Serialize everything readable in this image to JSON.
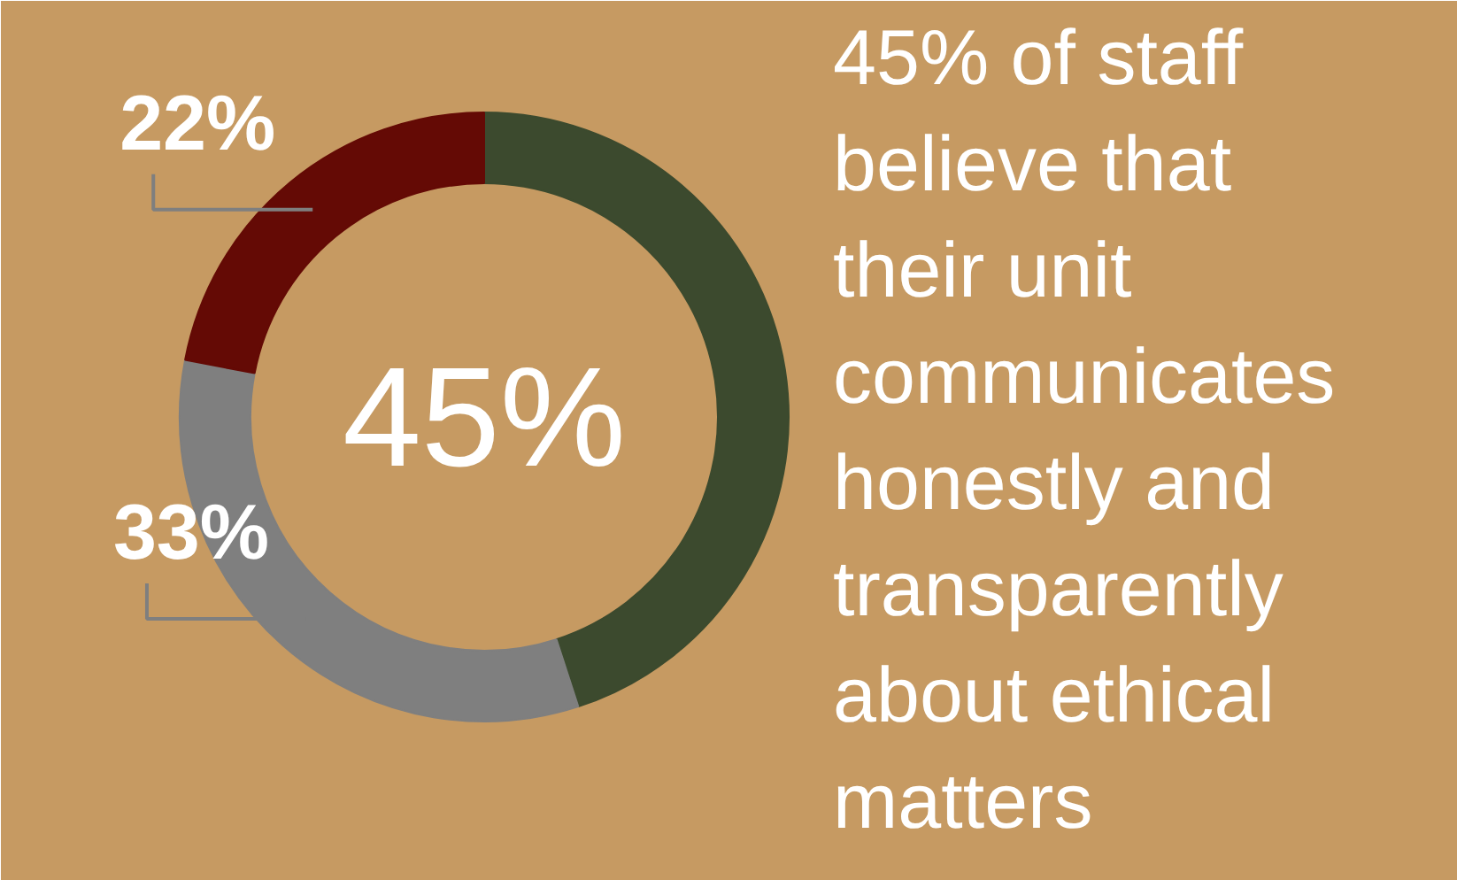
{
  "chart_data": {
    "type": "donut",
    "title": "45% of staff believe that their unit communicates honestly and transparently about ethical matters",
    "categories": [
      null,
      null,
      null
    ],
    "values": [
      45,
      33,
      22
    ],
    "colors": [
      "#3c4a2e",
      "#7f7f7f",
      "#640a05"
    ],
    "value_labels": [
      "45%",
      "33%",
      "22%"
    ]
  }
}
